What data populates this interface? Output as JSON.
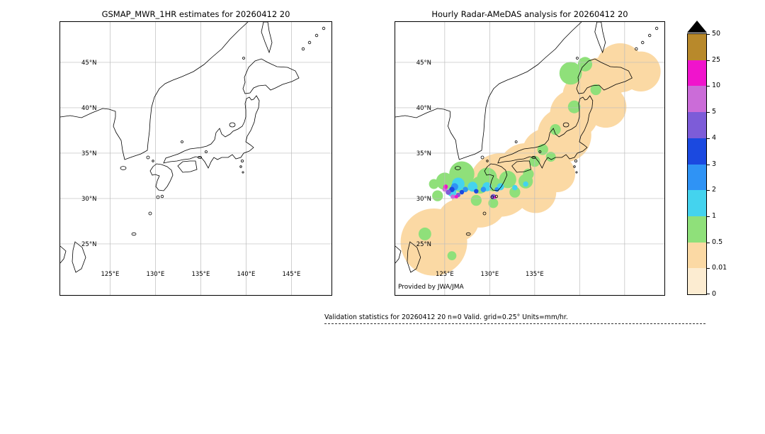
{
  "chart_data": {
    "type": "heatmap",
    "title": "GSMaP MWR vs Radar-AMeDAS hourly precipitation validation maps",
    "units": "mm/hr",
    "panels": [
      {
        "title": "GSMAP_MWR_1HR estimates for 20260412 20",
        "xlim": [
          119.5,
          149.4
        ],
        "ylim": [
          19.4,
          49.45
        ],
        "grid": true,
        "grid_lons": [
          125,
          130,
          135,
          140,
          145
        ],
        "grid_lats": [
          25,
          30,
          35,
          40,
          45
        ],
        "xticks": {
          "values": [
            125,
            130,
            135,
            140,
            145
          ],
          "labels": [
            "125°E",
            "130°E",
            "135°E",
            "140°E",
            "145°E"
          ]
        },
        "yticks": {
          "values": [
            45,
            40,
            35,
            30,
            25
          ],
          "labels": [
            "45°N",
            "40°N",
            "35°N",
            "30°N",
            "25°N"
          ]
        },
        "precip_regions": []
      },
      {
        "title": "Hourly Radar-AMeDAS analysis for 20260412 20",
        "credit": "Provided by JWA/JMA",
        "xlim": [
          119.5,
          149.2
        ],
        "ylim": [
          19.4,
          49.45
        ],
        "grid": true,
        "grid_lons": [
          125,
          130,
          135,
          140,
          145
        ],
        "grid_lats": [
          25,
          30,
          35,
          40,
          45
        ],
        "xticks": {
          "values": [
            125,
            130,
            135
          ],
          "labels": [
            "125°E",
            "130°E",
            "135°E"
          ]
        },
        "yticks": {
          "values": [
            45,
            40,
            35,
            30,
            25
          ],
          "labels": [
            "45°N",
            "40°N",
            "35°N",
            "30°N",
            "25°N"
          ]
        },
        "precip_regions": [
          {
            "level": "0.01-0.5",
            "lon": 123.8,
            "lat": 25.2,
            "r": 3.7
          },
          {
            "level": "0.01-0.5",
            "lon": 126.5,
            "lat": 27.6,
            "r": 2.3
          },
          {
            "level": "0.01-0.5",
            "lon": 128.9,
            "lat": 29.9,
            "r": 3.1
          },
          {
            "level": "0.01-0.5",
            "lon": 131.2,
            "lat": 31.5,
            "r": 3.5
          },
          {
            "level": "0.01-0.5",
            "lon": 134.0,
            "lat": 33.0,
            "r": 3.1
          },
          {
            "level": "0.01-0.5",
            "lon": 136.3,
            "lat": 35.0,
            "r": 2.7
          },
          {
            "level": "0.01-0.5",
            "lon": 138.3,
            "lat": 37.0,
            "r": 3.0
          },
          {
            "level": "0.01-0.5",
            "lon": 139.4,
            "lat": 39.3,
            "r": 2.7
          },
          {
            "level": "0.01-0.5",
            "lon": 140.6,
            "lat": 41.3,
            "r": 2.5
          },
          {
            "level": "0.01-0.5",
            "lon": 142.2,
            "lat": 42.8,
            "r": 2.7
          },
          {
            "level": "0.01-0.5",
            "lon": 144.5,
            "lat": 44.4,
            "r": 2.7
          },
          {
            "level": "0.01-0.5",
            "lon": 146.8,
            "lat": 44.0,
            "r": 2.2
          },
          {
            "level": "0.01-0.5",
            "lon": 142.9,
            "lat": 40.1,
            "r": 2.3
          },
          {
            "level": "0.01-0.5",
            "lon": 135.1,
            "lat": 30.7,
            "r": 2.3
          },
          {
            "level": "0.01-0.5",
            "lon": 137.5,
            "lat": 32.7,
            "r": 2.0
          },
          {
            "level": "0.5-1",
            "lon": 139.0,
            "lat": 43.8,
            "r": 1.25
          },
          {
            "level": "0.5-1",
            "lon": 140.6,
            "lat": 44.8,
            "r": 0.8
          },
          {
            "level": "0.5-1",
            "lon": 141.8,
            "lat": 42.0,
            "r": 0.6
          },
          {
            "level": "0.5-1",
            "lon": 139.4,
            "lat": 40.1,
            "r": 0.7
          },
          {
            "level": "0.5-1",
            "lon": 137.3,
            "lat": 37.6,
            "r": 0.6
          },
          {
            "level": "0.5-1",
            "lon": 135.9,
            "lat": 35.4,
            "r": 0.6
          },
          {
            "level": "0.5-1",
            "lon": 126.9,
            "lat": 32.7,
            "r": 1.4
          },
          {
            "level": "0.5-1",
            "lon": 129.7,
            "lat": 32.3,
            "r": 1.1
          },
          {
            "level": "0.5-1",
            "lon": 132.0,
            "lat": 32.1,
            "r": 0.95
          },
          {
            "level": "0.5-1",
            "lon": 134.0,
            "lat": 31.9,
            "r": 0.8
          },
          {
            "level": "0.5-1",
            "lon": 125.0,
            "lat": 31.9,
            "r": 0.95
          },
          {
            "level": "0.5-1",
            "lon": 124.2,
            "lat": 30.3,
            "r": 0.6
          },
          {
            "level": "0.5-1",
            "lon": 128.5,
            "lat": 29.8,
            "r": 0.6
          },
          {
            "level": "0.5-1",
            "lon": 130.4,
            "lat": 29.5,
            "r": 0.55
          },
          {
            "level": "0.5-1",
            "lon": 132.8,
            "lat": 30.7,
            "r": 0.6
          },
          {
            "level": "0.5-1",
            "lon": 134.3,
            "lat": 32.7,
            "r": 0.6
          },
          {
            "level": "0.5-1",
            "lon": 122.8,
            "lat": 26.1,
            "r": 0.7
          },
          {
            "level": "0.5-1",
            "lon": 125.8,
            "lat": 23.7,
            "r": 0.5
          },
          {
            "level": "0.5-1",
            "lon": 136.8,
            "lat": 34.6,
            "r": 0.55
          },
          {
            "level": "0.5-1",
            "lon": 135.0,
            "lat": 34.1,
            "r": 0.6
          },
          {
            "level": "0.5-1",
            "lon": 123.8,
            "lat": 31.6,
            "r": 0.55
          },
          {
            "level": "0.5-1",
            "lon": 126.9,
            "lat": 31.9,
            "r": 1.25
          },
          {
            "level": "0.5-1",
            "lon": 128.9,
            "lat": 31.5,
            "r": 0.95
          },
          {
            "level": "0.5-1",
            "lon": 130.4,
            "lat": 31.6,
            "r": 0.8
          },
          {
            "level": "1-2",
            "lon": 126.5,
            "lat": 31.6,
            "r": 0.7
          },
          {
            "level": "1-2",
            "lon": 128.1,
            "lat": 31.3,
            "r": 0.55
          },
          {
            "level": "1-2",
            "lon": 129.7,
            "lat": 31.3,
            "r": 0.5
          },
          {
            "level": "1-2",
            "lon": 131.2,
            "lat": 31.3,
            "r": 0.4
          },
          {
            "level": "1-2",
            "lon": 132.8,
            "lat": 31.2,
            "r": 0.3
          },
          {
            "level": "1-2",
            "lon": 125.8,
            "lat": 30.7,
            "r": 0.5
          },
          {
            "level": "1-2",
            "lon": 134.0,
            "lat": 31.6,
            "r": 0.3
          },
          {
            "level": "2-3",
            "lon": 126.1,
            "lat": 31.3,
            "r": 0.4
          },
          {
            "level": "2-3",
            "lon": 127.3,
            "lat": 31.0,
            "r": 0.3
          },
          {
            "level": "2-3",
            "lon": 129.3,
            "lat": 31.0,
            "r": 0.3
          },
          {
            "level": "2-3",
            "lon": 130.8,
            "lat": 31.0,
            "r": 0.25
          },
          {
            "level": "3-4",
            "lon": 125.8,
            "lat": 31.0,
            "r": 0.3
          },
          {
            "level": "3-4",
            "lon": 126.9,
            "lat": 30.7,
            "r": 0.25
          },
          {
            "level": "3-4",
            "lon": 128.5,
            "lat": 30.8,
            "r": 0.25
          },
          {
            "level": "4-5",
            "lon": 125.4,
            "lat": 30.7,
            "r": 0.3
          },
          {
            "level": "4-5",
            "lon": 126.5,
            "lat": 30.4,
            "r": 0.25
          },
          {
            "level": "4-5",
            "lon": 130.4,
            "lat": 30.2,
            "r": 0.3
          },
          {
            "level": "5-10",
            "lon": 125.0,
            "lat": 31.0,
            "r": 0.25
          },
          {
            "level": "5-10",
            "lon": 125.9,
            "lat": 30.2,
            "r": 0.25
          },
          {
            "level": "10-25",
            "lon": 125.1,
            "lat": 31.3,
            "r": 0.25
          },
          {
            "level": "10-25",
            "lon": 126.3,
            "lat": 30.2,
            "r": 0.2
          },
          {
            "level": "10-25",
            "lon": 130.6,
            "lat": 30.1,
            "r": 0.15
          }
        ]
      }
    ],
    "colorbar": {
      "units": "mm/hr",
      "boundaries": [
        0,
        0.01,
        0.5,
        1,
        2,
        3,
        4,
        5,
        10,
        25,
        50
      ],
      "tick_labels_top_to_bottom": [
        "50",
        "25",
        "10",
        "5",
        "4",
        "3",
        "2",
        "1",
        "0.5",
        "0.01",
        "0"
      ],
      "intervals": [
        {
          "range": "0-0.01",
          "color": "#fcecd1"
        },
        {
          "range": "0.01-0.5",
          "color": "#fbd9a4"
        },
        {
          "range": "0.5-1",
          "color": "#8fe07a"
        },
        {
          "range": "1-2",
          "color": "#44d3ee"
        },
        {
          "range": "2-3",
          "color": "#2f93f5"
        },
        {
          "range": "3-4",
          "color": "#1b49e0"
        },
        {
          "range": "4-5",
          "color": "#7d5cd8"
        },
        {
          "range": "5-10",
          "color": "#cb6cd8"
        },
        {
          "range": "10-25",
          "color": "#f014cc"
        },
        {
          "range": "25-50",
          "color": "#b8892b"
        }
      ],
      "overflow_triangle_color": "#000000"
    }
  },
  "footer": {
    "validation_text": "Validation statistics for 20260412 20  n=0 Valid. grid=0.25° Units=mm/hr."
  }
}
